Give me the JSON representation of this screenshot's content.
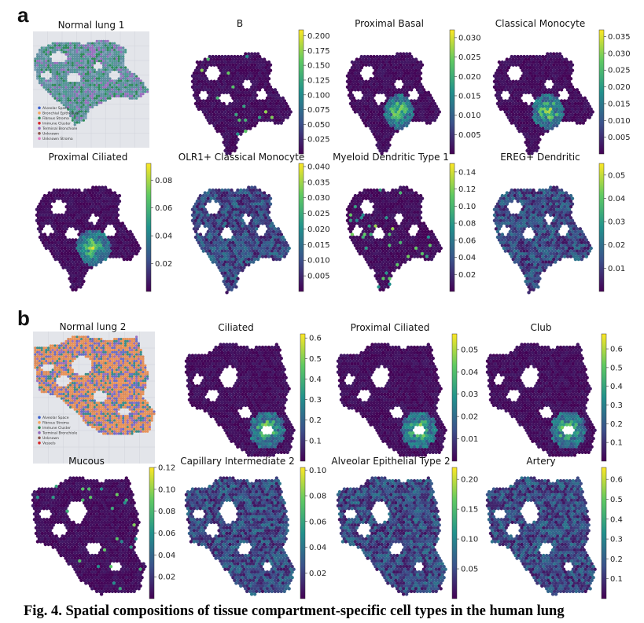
{
  "figure": {
    "caption": "Fig. 4. Spatial compositions of tissue compartment-specific cell types in the human lung",
    "colormap": [
      "#440154",
      "#3b528b",
      "#21918c",
      "#5ec962",
      "#fde725"
    ],
    "background_color": "#3d0a55",
    "panels": [
      {
        "letter": "a",
        "reference": {
          "title": "Normal lung 1",
          "legend": [
            "Alveolar Space",
            "Bronchial Epithelium",
            "Fibrous Stroma",
            "Immune Cluster",
            "Terminal Bronchiole",
            "Unknown",
            "Unknown Stroma"
          ],
          "legend_colors": [
            "#3a5fcd",
            "#f4a460",
            "#2e8b57",
            "#d62728",
            "#9467bd",
            "#8c564b",
            "#e377c2"
          ]
        },
        "plots": [
          {
            "title": "B",
            "cbar_ticks": [
              "0.200",
              "0.175",
              "0.150",
              "0.125",
              "0.100",
              "0.075",
              "0.050",
              "0.025"
            ],
            "cbar_max": 0.21
          },
          {
            "title": "Proximal Basal",
            "cbar_ticks": [
              "0.030",
              "0.025",
              "0.020",
              "0.015",
              "0.010",
              "0.005"
            ],
            "cbar_max": 0.032
          },
          {
            "title": "Classical Monocyte",
            "cbar_ticks": [
              "0.035",
              "0.030",
              "0.025",
              "0.020",
              "0.015",
              "0.010",
              "0.005"
            ],
            "cbar_max": 0.037
          },
          {
            "title": "Proximal Ciliated",
            "cbar_ticks": [
              "0.08",
              "0.06",
              "0.04",
              "0.02"
            ],
            "cbar_max": 0.092
          },
          {
            "title": "OLR1+ Classical Monocyte",
            "cbar_ticks": [
              "0.040",
              "0.035",
              "0.030",
              "0.025",
              "0.020",
              "0.015",
              "0.010",
              "0.005"
            ],
            "cbar_max": 0.041
          },
          {
            "title": "Myeloid Dendritic Type 1",
            "cbar_ticks": [
              "0.14",
              "0.12",
              "0.10",
              "0.08",
              "0.06",
              "0.04",
              "0.02"
            ],
            "cbar_max": 0.15
          },
          {
            "title": "EREG+ Dendritic",
            "cbar_ticks": [
              "0.05",
              "0.04",
              "0.03",
              "0.02",
              "0.01"
            ],
            "cbar_max": 0.055
          }
        ]
      },
      {
        "letter": "b",
        "reference": {
          "title": "Normal lung 2",
          "legend": [
            "Alveolar Space",
            "Fibrous Stroma",
            "Immune Cluster",
            "Terminal Bronchiole",
            "Unknown",
            "Vessels"
          ],
          "legend_colors": [
            "#3a5fcd",
            "#f4a460",
            "#2e8b57",
            "#9467bd",
            "#8c564b",
            "#d62728"
          ]
        },
        "plots": [
          {
            "title": "Ciliated",
            "cbar_ticks": [
              "0.6",
              "0.5",
              "0.4",
              "0.3",
              "0.2",
              "0.1"
            ],
            "cbar_max": 0.62
          },
          {
            "title": "Proximal Ciliated",
            "cbar_ticks": [
              "0.05",
              "0.04",
              "0.03",
              "0.02",
              "0.01"
            ],
            "cbar_max": 0.057
          },
          {
            "title": "Club",
            "cbar_ticks": [
              "0.6",
              "0.5",
              "0.4",
              "0.3",
              "0.2",
              "0.1"
            ],
            "cbar_max": 0.68
          },
          {
            "title": "Mucous",
            "cbar_ticks": [
              "0.12",
              "0.10",
              "0.08",
              "0.06",
              "0.04",
              "0.02"
            ],
            "cbar_max": 0.12
          },
          {
            "title": "Capillary Intermediate 2",
            "cbar_ticks": [
              "0.10",
              "0.08",
              "0.06",
              "0.04",
              "0.02"
            ],
            "cbar_max": 0.102
          },
          {
            "title": "Alveolar Epithelial Type 2",
            "cbar_ticks": [
              "0.20",
              "0.15",
              "0.10",
              "0.05"
            ],
            "cbar_max": 0.22
          },
          {
            "title": "Artery",
            "cbar_ticks": [
              "0.6",
              "0.5",
              "0.4",
              "0.3",
              "0.2",
              "0.1"
            ],
            "cbar_max": 0.66
          }
        ]
      }
    ]
  },
  "chart_data": [
    {
      "type": "heatmap",
      "title": "B",
      "colorbar_range": [
        0,
        0.21
      ],
      "colormap": "viridis",
      "hotspots": [
        "sparse"
      ]
    },
    {
      "type": "heatmap",
      "title": "Proximal Basal",
      "colorbar_range": [
        0,
        0.032
      ],
      "colormap": "viridis",
      "hotspots": [
        "center"
      ]
    },
    {
      "type": "heatmap",
      "title": "Classical Monocyte",
      "colorbar_range": [
        0,
        0.037
      ],
      "colormap": "viridis",
      "hotspots": [
        "center"
      ]
    },
    {
      "type": "heatmap",
      "title": "Proximal Ciliated",
      "colorbar_range": [
        0,
        0.092
      ],
      "colormap": "viridis",
      "hotspots": [
        "center"
      ]
    },
    {
      "type": "heatmap",
      "title": "OLR1+ Classical Monocyte",
      "colorbar_range": [
        0,
        0.041
      ],
      "colormap": "viridis",
      "hotspots": [
        "diffuse"
      ]
    },
    {
      "type": "heatmap",
      "title": "Myeloid Dendritic Type 1",
      "colorbar_range": [
        0,
        0.15
      ],
      "colormap": "viridis",
      "hotspots": [
        "sparse"
      ]
    },
    {
      "type": "heatmap",
      "title": "EREG+ Dendritic",
      "colorbar_range": [
        0,
        0.055
      ],
      "colormap": "viridis",
      "hotspots": [
        "diffuse"
      ]
    },
    {
      "type": "heatmap",
      "title": "Ciliated",
      "colorbar_range": [
        0,
        0.62
      ],
      "colormap": "viridis",
      "hotspots": [
        "lower-right"
      ]
    },
    {
      "type": "heatmap",
      "title": "Proximal Ciliated",
      "colorbar_range": [
        0,
        0.057
      ],
      "colormap": "viridis",
      "hotspots": [
        "lower-right"
      ]
    },
    {
      "type": "heatmap",
      "title": "Club",
      "colorbar_range": [
        0,
        0.68
      ],
      "colormap": "viridis",
      "hotspots": [
        "lower-right"
      ]
    },
    {
      "type": "heatmap",
      "title": "Mucous",
      "colorbar_range": [
        0,
        0.12
      ],
      "colormap": "viridis",
      "hotspots": [
        "sparse"
      ]
    },
    {
      "type": "heatmap",
      "title": "Capillary Intermediate 2",
      "colorbar_range": [
        0,
        0.102
      ],
      "colormap": "viridis",
      "hotspots": [
        "diffuse"
      ]
    },
    {
      "type": "heatmap",
      "title": "Alveolar Epithelial Type 2",
      "colorbar_range": [
        0,
        0.22
      ],
      "colormap": "viridis",
      "hotspots": [
        "diffuse"
      ]
    },
    {
      "type": "heatmap",
      "title": "Artery",
      "colorbar_range": [
        0,
        0.66
      ],
      "colormap": "viridis",
      "hotspots": [
        "diffuse"
      ]
    }
  ]
}
